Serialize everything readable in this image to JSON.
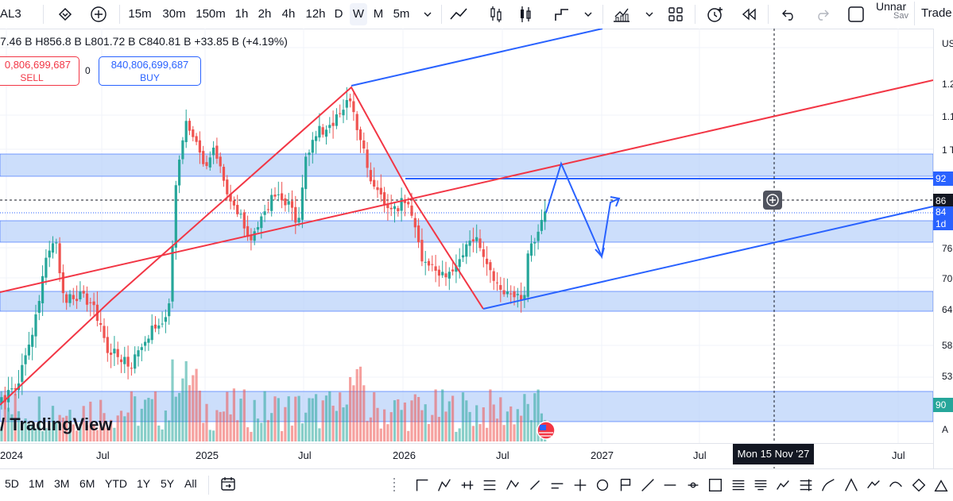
{
  "toolbar": {
    "symbol": "AL3",
    "intervals": [
      "15m",
      "30m",
      "150m",
      "1h",
      "2h",
      "4h",
      "12h",
      "D",
      "W",
      "M",
      "5m"
    ],
    "active_interval": "W",
    "layout_name": "Unnar",
    "layout_status": "Sav",
    "trade_label": "Trade"
  },
  "legend": {
    "ohlc_text": "7.46 B  H856.8 B  L801.72 B  C840.81 B  +33.85 B (+4.19%)"
  },
  "trade": {
    "sell_price": "0,806,699,687",
    "sell_label": "SELL",
    "spread": "0",
    "buy_price": "840,806,699,687",
    "buy_label": "BUY"
  },
  "price_axis": {
    "currency": "USI",
    "labels": [
      "1.2",
      "1.1",
      "1 T",
      "76",
      "70",
      "64",
      "58",
      "53",
      "A"
    ],
    "tags": [
      {
        "text": "92",
        "color": "#2962ff"
      },
      {
        "text": "86",
        "color": "#131722"
      },
      {
        "text": "84",
        "color": "#2962ff"
      },
      {
        "text": "1d",
        "color": "#2962ff"
      },
      {
        "text": "90",
        "color": "#26a69a"
      }
    ]
  },
  "time_axis": {
    "labels": [
      "2024",
      "Jul",
      "2025",
      "Jul",
      "2026",
      "Jul",
      "2027",
      "Jul",
      "Jul"
    ],
    "crosshair_date": "Mon 15 Nov '27"
  },
  "watermark": "TradingView",
  "ranges": [
    "5D",
    "1M",
    "3M",
    "6M",
    "YTD",
    "1Y",
    "5Y",
    "All"
  ],
  "colors": {
    "up": "#26a69a",
    "down": "#ef5350",
    "zone": "#bbd3fa",
    "blue_line": "#2962ff",
    "red_line": "#f23645",
    "grid": "#f0f3fa"
  },
  "icons": {
    "drawing_tools": [
      "cursor-icon",
      "crosshair-icon",
      "trend-line-icon",
      "fib-icon",
      "pattern-icon",
      "brush-icon",
      "text-icon",
      "measure-icon",
      "zoom-icon",
      "magnet-icon",
      "lock-icon",
      "eye-icon",
      "trash-icon",
      "ruler-icon",
      "rectangle-icon",
      "path-icon",
      "price-range-icon",
      "anchor-icon",
      "projection-icon",
      "fork-icon",
      "wave-icon",
      "curve-icon",
      "shape-icon",
      "triangle-icon",
      "more-icon"
    ]
  }
}
